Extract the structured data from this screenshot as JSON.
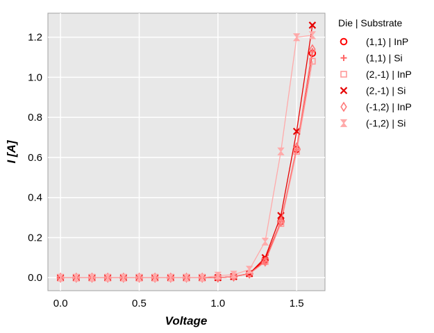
{
  "chart_data": {
    "type": "line",
    "xlabel": "Voltage",
    "ylabel": "I [A]",
    "xlim": [
      -0.08,
      1.68
    ],
    "ylim": [
      -0.065,
      1.32
    ],
    "xticks": [
      0.0,
      0.5,
      1.0,
      1.5
    ],
    "yticks": [
      0.0,
      0.2,
      0.4,
      0.6,
      0.8,
      1.0,
      1.2
    ],
    "xtick_labels": [
      "0.0",
      "0.5",
      "1.0",
      "1.5"
    ],
    "ytick_labels": [
      "0.0",
      "0.2",
      "0.4",
      "0.6",
      "0.8",
      "1.0",
      "1.2"
    ],
    "grid": true,
    "legend_position": "outside-right",
    "legend_title": "Die | Substrate",
    "x": [
      0.0,
      0.1,
      0.2,
      0.3,
      0.4,
      0.5,
      0.6,
      0.7,
      0.8,
      0.9,
      1.0,
      1.1,
      1.2,
      1.3,
      1.4,
      1.5,
      1.6
    ],
    "series": [
      {
        "name": "(1,1) | InP",
        "color": "#ff0000",
        "marker": "circle",
        "values": [
          0,
          0,
          0,
          0,
          0,
          0,
          0,
          0,
          0,
          0,
          0,
          0.005,
          0.02,
          0.09,
          0.28,
          0.64,
          1.12
        ]
      },
      {
        "name": "(1,1) | Si",
        "color": "#ff6666",
        "marker": "plus",
        "values": [
          0,
          0,
          0,
          0,
          0,
          0,
          0,
          0,
          0,
          0,
          0,
          0.005,
          0.02,
          0.08,
          0.28,
          0.64,
          1.13
        ]
      },
      {
        "name": "(2,-1) | InP",
        "color": "#ff9999",
        "marker": "square",
        "values": [
          0,
          0,
          0,
          0,
          0,
          0,
          0,
          0,
          0,
          0,
          0,
          0.005,
          0.02,
          0.08,
          0.27,
          0.63,
          1.08
        ]
      },
      {
        "name": "(2,-1) | Si",
        "color": "#e60000",
        "marker": "x",
        "values": [
          0,
          0,
          0,
          0,
          0,
          0,
          0,
          0,
          0,
          0,
          0,
          0.005,
          0.02,
          0.1,
          0.31,
          0.73,
          1.26
        ]
      },
      {
        "name": "(-1,2) | InP",
        "color": "#ff7777",
        "marker": "diamond",
        "values": [
          0,
          0,
          0,
          0,
          0,
          0,
          0,
          0,
          0,
          0,
          0,
          0.005,
          0.02,
          0.08,
          0.28,
          0.65,
          1.14
        ]
      },
      {
        "name": "(-1,2) | Si",
        "color": "#ffaaaa",
        "marker": "hourglass",
        "values": [
          0,
          0,
          0,
          0,
          0,
          0,
          0,
          0,
          0,
          0,
          0.01,
          0.015,
          0.04,
          0.18,
          0.63,
          1.2,
          1.21
        ]
      }
    ]
  }
}
